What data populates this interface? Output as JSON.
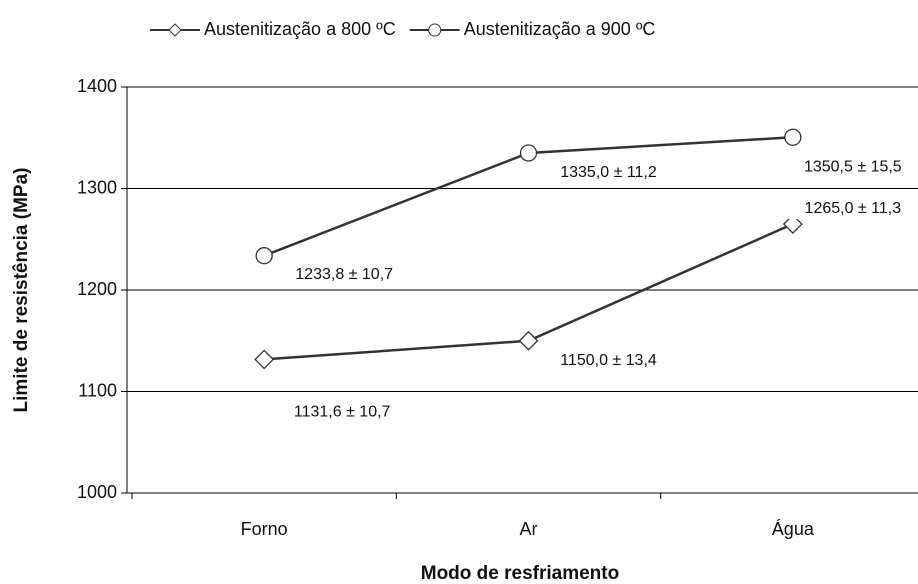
{
  "chart_data": {
    "type": "line",
    "xlabel": "Modo de resfriamento",
    "ylabel": "Limite de resistência (MPa)",
    "categories": [
      "Forno",
      "Ar",
      "Água"
    ],
    "series": [
      {
        "name": "Austenitização a 800 ºC",
        "color": "#333333",
        "marker": "diamond",
        "values": [
          1131.6,
          1150.0,
          1265.0
        ],
        "value_labels": [
          "1131,6 ± 10,7",
          "1150,0 ± 13,4",
          "1265,0 ± 11,3"
        ]
      },
      {
        "name": "Austenitização a 900 ºC",
        "color": "#333333",
        "marker": "circle",
        "values": [
          1233.8,
          1335.0,
          1350.5
        ],
        "value_labels": [
          "1233,8 ± 10,7",
          "1335,0 ± 11,2",
          "1350,5 ± 15,5"
        ]
      }
    ],
    "ylim": [
      1000,
      1400
    ],
    "yticks": [
      1000,
      1100,
      1200,
      1300,
      1400
    ],
    "grid": true,
    "legend": "top"
  }
}
